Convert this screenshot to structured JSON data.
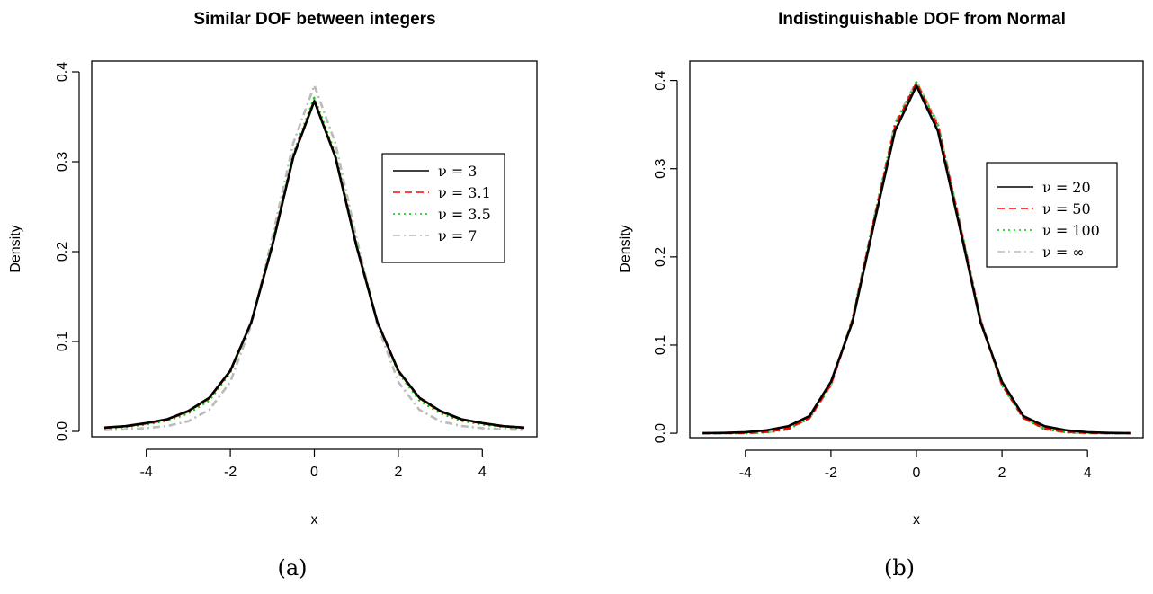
{
  "chart_data": [
    {
      "type": "line",
      "title": "Similar DOF between integers",
      "xlabel": "x",
      "ylabel": "Density",
      "caption": "(a)",
      "xlim": [
        -5,
        5
      ],
      "ylim": [
        0,
        0.4
      ],
      "xticks": [
        -4,
        -2,
        0,
        2,
        4
      ],
      "xtick_labels": [
        "-4",
        "-2",
        "0",
        "2",
        "4"
      ],
      "yticks": [
        0.0,
        0.1,
        0.2,
        0.3,
        0.4
      ],
      "ytick_labels": [
        "0.0",
        "0.1",
        "0.2",
        "0.3",
        "0.4"
      ],
      "grid": false,
      "legend_position": "right",
      "x": [
        -5,
        -4.5,
        -4,
        -3.5,
        -3,
        -2.5,
        -2,
        -1.5,
        -1,
        -0.5,
        0,
        0.5,
        1,
        1.5,
        2,
        2.5,
        3,
        3.5,
        4,
        4.5,
        5
      ],
      "series": [
        {
          "name": "ν = 3",
          "color": "#000000",
          "style": "solid",
          "values": [
            0.0042,
            0.0058,
            0.0092,
            0.0135,
            0.0227,
            0.0374,
            0.0675,
            0.1216,
            0.2067,
            0.3054,
            0.3676,
            0.3054,
            0.2067,
            0.1216,
            0.0675,
            0.0374,
            0.0227,
            0.0135,
            0.0092,
            0.0058,
            0.0042
          ]
        },
        {
          "name": "ν = 3.1",
          "color": "#ff0000",
          "style": "dashed",
          "values": [
            0.0041,
            0.0056,
            0.0089,
            0.0131,
            0.0222,
            0.037,
            0.0672,
            0.1217,
            0.2072,
            0.306,
            0.3682,
            0.306,
            0.2072,
            0.1217,
            0.0672,
            0.037,
            0.0222,
            0.0131,
            0.0089,
            0.0056,
            0.0041
          ]
        },
        {
          "name": "ν = 3.5",
          "color": "#00cc00",
          "style": "dotted",
          "values": [
            0.0035,
            0.005,
            0.0078,
            0.0118,
            0.0201,
            0.0345,
            0.0656,
            0.1218,
            0.2094,
            0.3088,
            0.3712,
            0.3088,
            0.2094,
            0.1218,
            0.0656,
            0.0345,
            0.0201,
            0.0118,
            0.0078,
            0.005,
            0.0035
          ]
        },
        {
          "name": "ν = 7",
          "color": "#bbbbbb",
          "style": "dashdot",
          "values": [
            0.0015,
            0.0022,
            0.0036,
            0.006,
            0.0112,
            0.024,
            0.055,
            0.1187,
            0.216,
            0.321,
            0.385,
            0.321,
            0.216,
            0.1187,
            0.055,
            0.024,
            0.0112,
            0.006,
            0.0036,
            0.0022,
            0.0015
          ]
        }
      ]
    },
    {
      "type": "line",
      "title": "Indistinguishable DOF from Normal",
      "xlabel": "x",
      "ylabel": "Density",
      "caption": "(b)",
      "xlim": [
        -5,
        5
      ],
      "ylim": [
        0,
        0.4
      ],
      "xticks": [
        -4,
        -2,
        0,
        2,
        4
      ],
      "xtick_labels": [
        "-4",
        "-2",
        "0",
        "2",
        "4"
      ],
      "yticks": [
        0.0,
        0.1,
        0.2,
        0.3,
        0.4
      ],
      "ytick_labels": [
        "0.0",
        "0.1",
        "0.2",
        "0.3",
        "0.4"
      ],
      "grid": false,
      "legend_position": "right",
      "x": [
        -5,
        -4.5,
        -4,
        -3.5,
        -3,
        -2.5,
        -2,
        -1.5,
        -1,
        -0.5,
        0,
        0.5,
        1,
        1.5,
        2,
        2.5,
        3,
        3.5,
        4,
        4.5,
        5
      ],
      "series": [
        {
          "name": "ν = 20",
          "color": "#000000",
          "style": "solid",
          "values": [
            0.0001,
            0.0004,
            0.0012,
            0.0034,
            0.0079,
            0.0195,
            0.0584,
            0.1257,
            0.236,
            0.343,
            0.394,
            0.343,
            0.236,
            0.1257,
            0.0584,
            0.0195,
            0.0079,
            0.0034,
            0.0012,
            0.0004,
            0.0001
          ]
        },
        {
          "name": "ν = 50",
          "color": "#ff0000",
          "style": "dashed",
          "values": [
            3e-05,
            0.0001,
            0.0004,
            0.0016,
            0.0054,
            0.0175,
            0.0556,
            0.1272,
            0.2393,
            0.3478,
            0.397,
            0.3478,
            0.2393,
            0.1272,
            0.0556,
            0.0175,
            0.0054,
            0.0016,
            0.0004,
            0.0001,
            3e-05
          ]
        },
        {
          "name": "ν = 100",
          "color": "#00cc00",
          "style": "dotted",
          "values": [
            2e-05,
            0.0001,
            0.0003,
            0.0011,
            0.0047,
            0.017,
            0.0548,
            0.1285,
            0.241,
            0.3505,
            0.3979,
            0.3505,
            0.241,
            0.1285,
            0.0548,
            0.017,
            0.0047,
            0.0011,
            0.0003,
            0.0001,
            2e-05
          ]
        },
        {
          "name": "ν = ∞",
          "color": "#bbbbbb",
          "style": "dashdot",
          "values": [
            1.5e-06,
            1.6e-05,
            0.0001,
            0.0009,
            0.0044,
            0.0175,
            0.054,
            0.1295,
            0.242,
            0.3521,
            0.3989,
            0.3521,
            0.242,
            0.1295,
            0.054,
            0.0175,
            0.0044,
            0.0009,
            0.0001,
            1.6e-05,
            1.5e-06
          ]
        }
      ]
    }
  ]
}
